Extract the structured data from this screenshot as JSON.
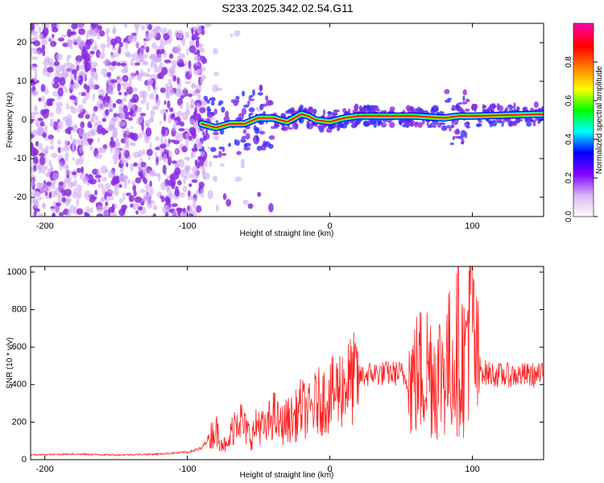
{
  "title": "S233.2025.342.02.54.G11",
  "chart_data": [
    {
      "type": "heatmap",
      "name": "spectrogram",
      "xlabel": "Height of straight line (km)",
      "ylabel": "Frequency (Hz)",
      "xlim": [
        -210,
        150
      ],
      "ylim": [
        -25,
        25
      ],
      "xticks": [
        -200,
        -100,
        0,
        100
      ],
      "yticks": [
        -20,
        -10,
        0,
        10,
        20
      ],
      "noise_region": [
        -210,
        -88
      ],
      "signal_start": -90,
      "carrier_frequency_hz": 1,
      "ridge": [
        {
          "x": -90,
          "y": -1
        },
        {
          "x": -80,
          "y": -2
        },
        {
          "x": -70,
          "y": -1
        },
        {
          "x": -60,
          "y": -1
        },
        {
          "x": -50,
          "y": 0.5
        },
        {
          "x": -40,
          "y": 0.5
        },
        {
          "x": -30,
          "y": -0.5
        },
        {
          "x": -20,
          "y": 1.5
        },
        {
          "x": -15,
          "y": 1
        },
        {
          "x": -10,
          "y": 0
        },
        {
          "x": 0,
          "y": -0.5
        },
        {
          "x": 10,
          "y": 0.5
        },
        {
          "x": 20,
          "y": 1
        },
        {
          "x": 50,
          "y": 1
        },
        {
          "x": 60,
          "y": 1
        },
        {
          "x": 80,
          "y": 0.5
        },
        {
          "x": 90,
          "y": 1
        },
        {
          "x": 100,
          "y": 1
        },
        {
          "x": 150,
          "y": 1.5
        }
      ],
      "colorbar": {
        "label": "Normalized spectral amplitude",
        "ticks": [
          "0.0",
          "0.2",
          "0.4",
          "0.6",
          "0.8"
        ],
        "range": [
          0,
          1
        ],
        "colors": [
          "#ffffff",
          "#d9b3f5",
          "#8000ff",
          "#0000ff",
          "#00ffff",
          "#00ff00",
          "#ffff00",
          "#ff8000",
          "#ff0000",
          "#ff00aa"
        ]
      }
    },
    {
      "type": "line",
      "name": "snr",
      "xlabel": "Height of straight line (km)",
      "ylabel": "SNR (10 * v/v)",
      "xlim": [
        -210,
        150
      ],
      "ylim": [
        0,
        1030
      ],
      "xticks": [
        -200,
        -100,
        0,
        100
      ],
      "yticks": [
        0,
        200,
        400,
        600,
        800,
        1000
      ],
      "line_color": "#ff2020",
      "series": [
        {
          "name": "SNR",
          "x": [
            -210,
            -180,
            -150,
            -120,
            -100,
            -90,
            -85,
            -80,
            -75,
            -72,
            -70,
            -65,
            -60,
            -55,
            -50,
            -45,
            -40,
            -35,
            -30,
            -25,
            -20,
            -15,
            -10,
            -5,
            0,
            5,
            10,
            20,
            30,
            40,
            50,
            55,
            60,
            65,
            70,
            75,
            80,
            85,
            90,
            95,
            98,
            100,
            103,
            110,
            120,
            130,
            140,
            150
          ],
          "y": [
            25,
            30,
            25,
            30,
            40,
            60,
            120,
            160,
            90,
            60,
            120,
            250,
            170,
            120,
            200,
            150,
            250,
            180,
            210,
            220,
            280,
            250,
            300,
            320,
            330,
            370,
            400,
            440,
            460,
            460,
            460,
            420,
            440,
            480,
            500,
            450,
            500,
            520,
            600,
            500,
            950,
            700,
            500,
            460,
            450,
            450,
            450,
            450
          ]
        }
      ]
    }
  ]
}
